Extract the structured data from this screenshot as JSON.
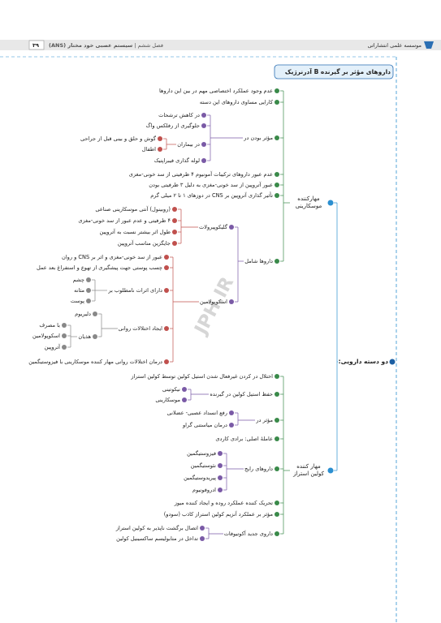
{
  "header": {
    "publisher": "موسسه علمی انتشاراتی",
    "chapter": "فصل ششم",
    "subject": "سیستم عصبی خود مختار (ANS)",
    "page_number": "۳۹"
  },
  "watermark": "JPH.IR",
  "title": "داروهای مؤثر بر گیرنده B آدرنرژیک",
  "tree": {
    "label": "دو دسته دارویی:",
    "children": [
      {
        "label": "مهارکننده موسکارینی",
        "children": [
          {
            "label": "عدم وجود عملکرد اختصاصی مهم در بین این داروها"
          },
          {
            "label": "کارایی مساوی داروهای این دسته"
          },
          {
            "label": "مؤثر بودن در",
            "children": [
              {
                "label": "در کاهش ترشحات"
              },
              {
                "label": "جلوگیری از رفلکس واگ"
              },
              {
                "label": "در بیماران",
                "children": [
                  {
                    "label": "گوش و حلق و بینی قبل از جراحی"
                  },
                  {
                    "label": "اطفال"
                  }
                ]
              },
              {
                "label": "لوله گذاری فیبراپتیک"
              }
            ]
          },
          {
            "label": "عدم عبور داروهای ترکیبات آمونیوم ۴ ظرفیتی از سد خونی-مغزی"
          },
          {
            "label": "عبور آتروپین از سد خونی-مغزی به دلیل ۳ ظرفیتی بودن"
          },
          {
            "label": "تأثیر گذاری آتروپین بر CNS در دوزهای ۱ تا ۲ میلی گرم"
          },
          {
            "label": "داروها شامل",
            "children": [
              {
                "label": "گلیکوپیرولات",
                "children": [
                  {
                    "label": "(روبینول) آنتی موسکارینی صناعی"
                  },
                  {
                    "label": "۴ ظرفیتی و عدم عبور از سد خونی-مغزی"
                  },
                  {
                    "label": "طول اثر بیشتر نسبت به آتروپین"
                  },
                  {
                    "label": "جایگزین مناسب آتروپین"
                  }
                ]
              },
              {
                "label": "اسکوپولامین",
                "children": [
                  {
                    "label": "عبور از سد خونی-مغزی و اثر بر CNS و روان"
                  },
                  {
                    "label": "چسب پوستی جهت پیشگیری از تهوع و استفراغ بعد عمل"
                  },
                  {
                    "label": "دارای اثرات نامطلوب بر",
                    "children": [
                      {
                        "label": "چشم"
                      },
                      {
                        "label": "مثانه"
                      },
                      {
                        "label": "پوست"
                      }
                    ]
                  },
                  {
                    "label": "ایجاد اختلالات روانی",
                    "children": [
                      {
                        "label": "دلیریوم"
                      },
                      {
                        "label": "هذیان",
                        "children": [
                          {
                            "label": "با مصرف"
                          },
                          {
                            "label": "اسکوپولامین"
                          },
                          {
                            "label": "آتروپین"
                          }
                        ]
                      }
                    ]
                  },
                  {
                    "label": "درمان اختلالات روانی مهار کننده موسکارینی با فیزوستیگمین"
                  }
                ]
              }
            ]
          }
        ]
      },
      {
        "label": "مهار کننده کولین استراز",
        "children": [
          {
            "label": "اختلال در کردن غیرفعال شدن استیل کولین توسط کولین استراز"
          },
          {
            "label": "حفظ استیل کولین در گیرنده",
            "children": [
              {
                "label": "نیکوتینی"
              },
              {
                "label": "موسکارینی"
              }
            ]
          },
          {
            "label": "مؤثر در",
            "children": [
              {
                "label": "رفع انسداد عصبی- عضلانی"
              },
              {
                "label": "درمان میاستنی گراو"
              }
            ]
          },
          {
            "label": "عاملهٔ اصلی: برادی کاردی"
          },
          {
            "label": "داروهای رایج",
            "children": [
              {
                "label": "فیزوستیگمین"
              },
              {
                "label": "نئوستیگمین"
              },
              {
                "label": "پیریدوستیگمین"
              },
              {
                "label": "ادروفونیوم"
              }
            ]
          },
          {
            "label": "تحریک کننده عملکرد روده و ایجاد کننده میوز"
          },
          {
            "label": "مؤثر بر عملکرد آنزیم کولین استراز کاذب (سودو)"
          },
          {
            "label": "داروی جدید آکوتیوفات",
            "children": [
              {
                "label": "اتصال برگشت ناپذیر به کولین استراز"
              },
              {
                "label": "تداخل در متابولیسم ساکسینیل کولین"
              }
            ]
          }
        ]
      }
    ]
  }
}
